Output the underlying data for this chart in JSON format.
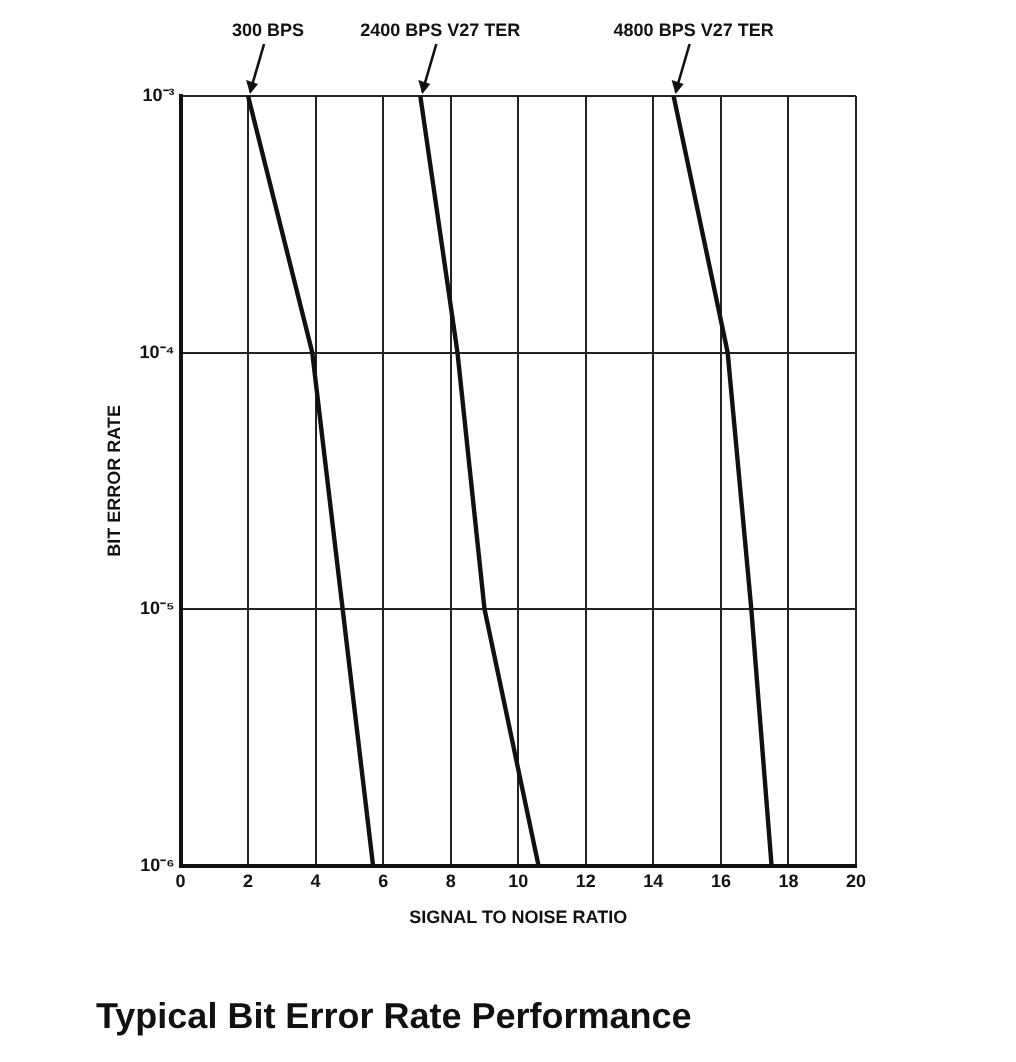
{
  "chart_data": {
    "type": "line",
    "title": "Typical Bit Error Rate Performance",
    "xlabel": "SIGNAL TO NOISE RATIO",
    "ylabel": "BIT ERROR RATE",
    "log": "y",
    "grid": true,
    "legend": false,
    "marker": "none",
    "line_style": "solid",
    "xlim": [
      0,
      20
    ],
    "xticks": [
      0,
      2,
      4,
      6,
      8,
      10,
      12,
      14,
      16,
      18,
      20
    ],
    "ylim": [
      1e-06,
      0.001
    ],
    "yticks": [
      {
        "value": 1e-06,
        "label": "10⁻⁶"
      },
      {
        "value": 1e-05,
        "label": "10⁻⁵"
      },
      {
        "value": 0.0001,
        "label": "10⁻⁴"
      },
      {
        "value": 0.001,
        "label": "10⁻³"
      }
    ],
    "series": [
      {
        "color": "#111111",
        "x": [
          2.0,
          3.9,
          4.8,
          5.7
        ],
        "values": [
          0.001,
          0.0001,
          1e-05,
          1e-06
        ]
      },
      {
        "color": "#111111",
        "x": [
          7.1,
          8.2,
          9.0,
          10.6
        ],
        "values": [
          0.001,
          0.0001,
          1e-05,
          1e-06
        ]
      },
      {
        "color": "#111111",
        "x": [
          14.6,
          16.2,
          16.9,
          17.5
        ],
        "values": [
          0.001,
          0.0001,
          1e-05,
          1e-06
        ]
      }
    ],
    "annotations": [
      {
        "text": "300 BPS",
        "x": 2.0,
        "y": 0.001
      },
      {
        "text": "2400 BPS V27 TER",
        "x": 7.1,
        "y": 0.001
      },
      {
        "text": "4800 BPS V27 TER",
        "x": 14.6,
        "y": 0.001
      }
    ]
  }
}
